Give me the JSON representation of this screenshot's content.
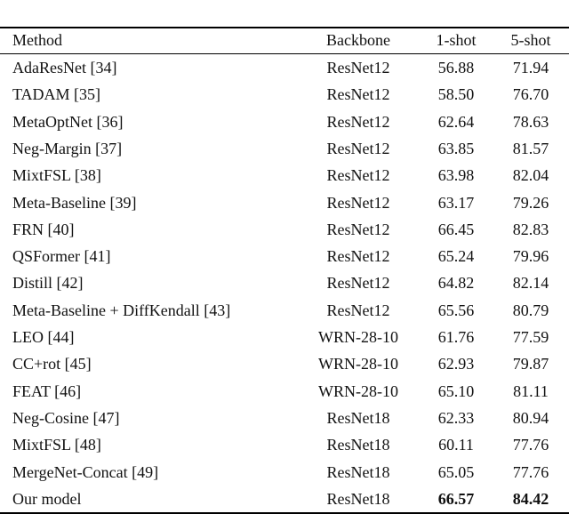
{
  "table": {
    "header": [
      "Method",
      "Backbone",
      "1-shot",
      "5-shot"
    ],
    "rows": [
      [
        "AdaResNet [34]",
        "ResNet12",
        "56.88",
        "71.94"
      ],
      [
        "TADAM [35]",
        "ResNet12",
        "58.50",
        "76.70"
      ],
      [
        "MetaOptNet [36]",
        "ResNet12",
        "62.64",
        "78.63"
      ],
      [
        "Neg-Margin [37]",
        "ResNet12",
        "63.85",
        "81.57"
      ],
      [
        "MixtFSL [38]",
        "ResNet12",
        "63.98",
        "82.04"
      ],
      [
        "Meta-Baseline [39]",
        "ResNet12",
        "63.17",
        "79.26"
      ],
      [
        "FRN [40]",
        "ResNet12",
        "66.45",
        "82.83"
      ],
      [
        "QSFormer [41]",
        "ResNet12",
        "65.24",
        "79.96"
      ],
      [
        "Distill [42]",
        "ResNet12",
        "64.82",
        "82.14"
      ],
      [
        "Meta-Baseline + DiffKendall [43]",
        "ResNet12",
        "65.56",
        "80.79"
      ],
      [
        "LEO [44]",
        "WRN-28-10",
        "61.76",
        "77.59"
      ],
      [
        "CC+rot [45]",
        "WRN-28-10",
        "62.93",
        "79.87"
      ],
      [
        "FEAT [46]",
        "WRN-28-10",
        "65.10",
        "81.11"
      ],
      [
        "Neg-Cosine [47]",
        "ResNet18",
        "62.33",
        "80.94"
      ],
      [
        "MixtFSL [48]",
        "ResNet18",
        "60.11",
        "77.76"
      ],
      [
        "MergeNet-Concat [49]",
        "ResNet18",
        "65.05",
        "77.76"
      ],
      [
        "Our model",
        "ResNet18",
        "66.57",
        "84.42"
      ]
    ]
  }
}
